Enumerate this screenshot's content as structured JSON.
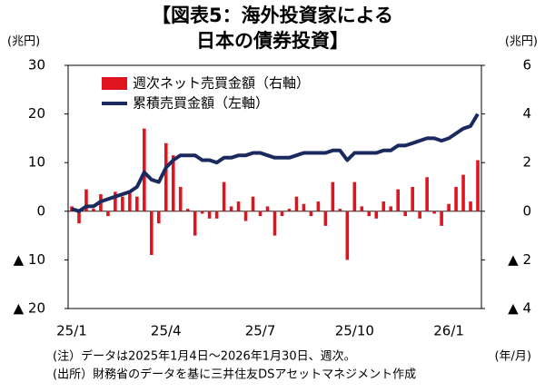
{
  "chart_data": {
    "type": "bar",
    "title": [
      "【図表5：海外投資家による",
      "日本の債券投資】"
    ],
    "y_label": "(兆円)",
    "y2_label": "(兆円)",
    "x_label": "(年/月)",
    "notes": [
      "(注）データは2025年1月4日～2026年1月30日、週次。",
      "(出所）財務省のデータを基に三井住友DSアセットマネジメント作成"
    ],
    "categories": [
      "25/1",
      null,
      null,
      null,
      null,
      null,
      null,
      null,
      null,
      null,
      null,
      null,
      null,
      "25/4",
      null,
      null,
      null,
      null,
      null,
      null,
      null,
      null,
      null,
      null,
      null,
      null,
      "25/7",
      null,
      null,
      null,
      null,
      null,
      null,
      null,
      null,
      null,
      null,
      null,
      null,
      "25/10",
      null,
      null,
      null,
      null,
      null,
      null,
      null,
      null,
      null,
      null,
      null,
      null,
      "26/1",
      null,
      null,
      null,
      null
    ],
    "series": [
      {
        "name": "週次ネット売買金額（右軸）",
        "type": "bar",
        "axis": "y2",
        "color": "#e0141e",
        "values": [
          0.2,
          -0.5,
          0.9,
          0.1,
          0.7,
          -0.2,
          0.8,
          0.6,
          0.8,
          0.6,
          3.4,
          -1.8,
          -0.5,
          2.8,
          2.3,
          1.0,
          0.1,
          -1.0,
          -0.1,
          -0.3,
          -0.3,
          1.2,
          0.2,
          0.4,
          -0.4,
          0.6,
          -0.2,
          0.2,
          -1.0,
          -0.2,
          0.1,
          0.6,
          0.3,
          -0.2,
          0.4,
          -0.6,
          1.2,
          0.1,
          -2.0,
          1.2,
          0.2,
          -0.2,
          -0.3,
          0.4,
          0.2,
          0.9,
          -0.2,
          1.0,
          -0.3,
          1.4,
          -0.1,
          -0.6,
          0.3,
          1.0,
          1.5,
          0.4,
          2.1
        ]
      },
      {
        "name": "累積売買金額（左軸）",
        "type": "line",
        "color": "#1b2a5e",
        "values": [
          0.5,
          0,
          1,
          1,
          2,
          2.5,
          3,
          3.5,
          4,
          5,
          8,
          6.5,
          6,
          9,
          10.5,
          11.5,
          11.5,
          11.5,
          10.5,
          10.5,
          10,
          11,
          11,
          11.5,
          11.5,
          12,
          12,
          11.5,
          11,
          11,
          11,
          11.5,
          12,
          12,
          12,
          12,
          12.5,
          12.5,
          10.5,
          12,
          12,
          12,
          12,
          12.5,
          12.5,
          13.5,
          13.5,
          14,
          14.5,
          15,
          15,
          14.5,
          15,
          16,
          17,
          17.5,
          20
        ]
      }
    ],
    "ylim": [
      -20,
      30
    ],
    "yticks": [
      30,
      20,
      10,
      0,
      {
        "value": -10,
        "label": "▲ 10"
      },
      {
        "value": -20,
        "label": "▲ 20"
      }
    ],
    "y2lim": [
      -4,
      6
    ],
    "y2ticks": [
      6,
      4,
      2,
      0,
      {
        "value": -2,
        "label": "▲ 2"
      },
      {
        "value": -4,
        "label": "▲ 4"
      }
    ]
  }
}
